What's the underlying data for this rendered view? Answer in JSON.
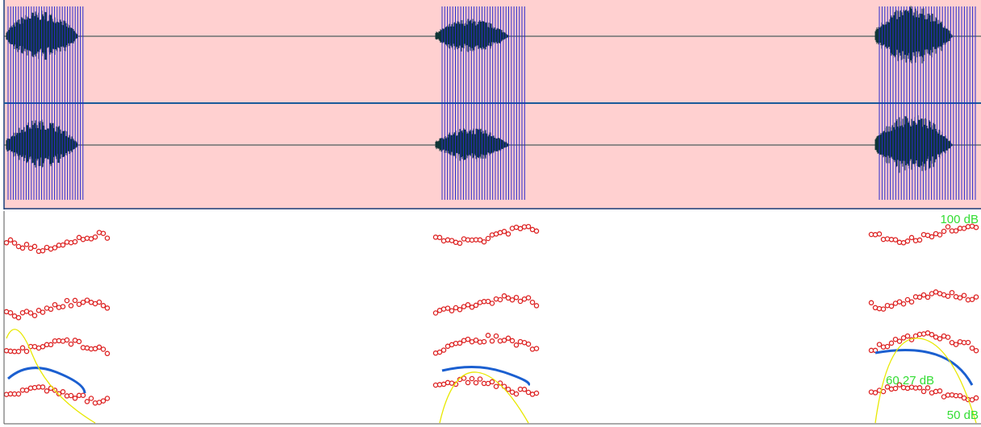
{
  "spectrogram": {
    "labels": {
      "top": "100 dB",
      "intensity": "60.27 dB",
      "bottom": "50 dB"
    }
  }
}
